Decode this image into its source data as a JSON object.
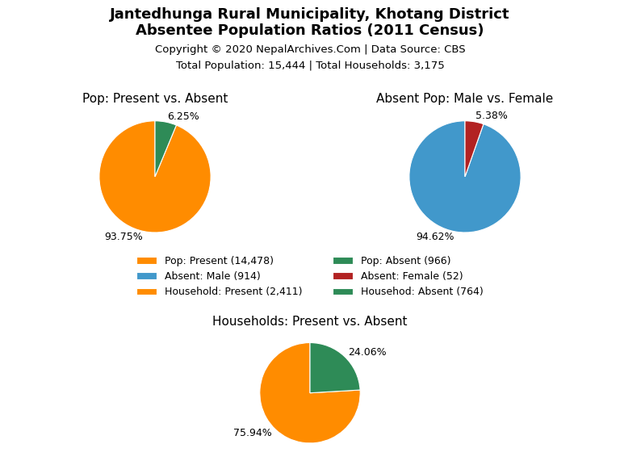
{
  "title": "Jantedhunga Rural Municipality, Khotang District\nAbsentee Population Ratios (2011 Census)",
  "annotations": [
    "Copyright © 2020 NepalArchives.Com | Data Source: CBS",
    "Total Population: 15,444 | Total Households: 3,175"
  ],
  "legend": "center",
  "chart_data": [
    {
      "type": "pie",
      "title": "Pop: Present vs. Absent",
      "categories": [
        "Pop: Present (14,478)",
        "Pop: Absent (966)"
      ],
      "values": [
        93.75,
        6.25
      ],
      "value_labels": [
        "93.75%",
        "6.25%"
      ],
      "colors": [
        "#FF8C00",
        "#2E8B57"
      ]
    },
    {
      "type": "pie",
      "title": "Absent Pop: Male vs. Female",
      "categories": [
        "Absent: Male (914)",
        "Absent: Female (52)"
      ],
      "values": [
        94.62,
        5.38
      ],
      "value_labels": [
        "94.62%",
        "5.38%"
      ],
      "colors": [
        "#4198CB",
        "#B22222"
      ]
    },
    {
      "type": "pie",
      "title": "Households: Present vs. Absent",
      "categories": [
        "Household: Present (2,411)",
        "Househod: Absent (764)"
      ],
      "values": [
        75.94,
        24.06
      ],
      "value_labels": [
        "75.94%",
        "24.06%"
      ],
      "colors": [
        "#FF8C00",
        "#2E8B57"
      ]
    }
  ]
}
